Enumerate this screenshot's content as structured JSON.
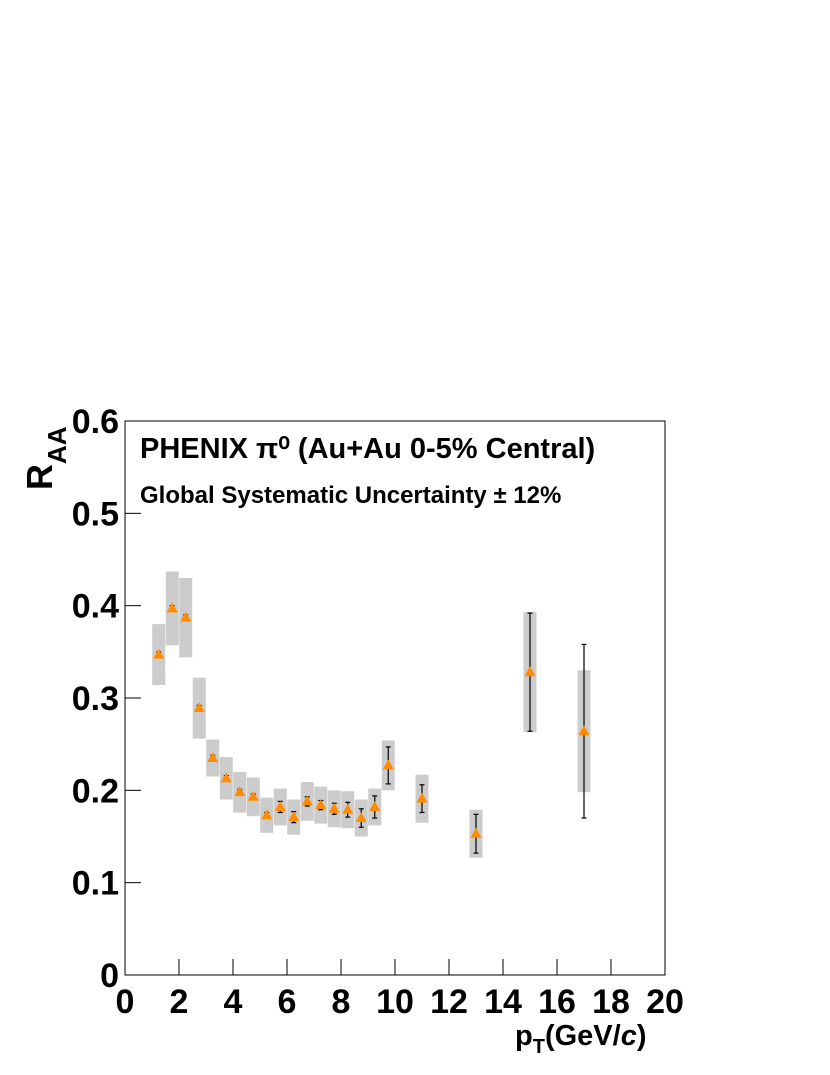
{
  "chart_data": {
    "type": "scatter",
    "annotations": [
      "PHENIX π⁰ (Au+Au 0-5% Central)",
      "Global Systematic Uncertainty ± 12%"
    ],
    "y_label": [
      "R",
      "AA"
    ],
    "x_label": [
      "p",
      "T",
      "(GeV/",
      "c",
      ")"
    ],
    "x": [
      1.25,
      1.75,
      2.25,
      2.75,
      3.25,
      3.75,
      4.25,
      4.75,
      5.25,
      5.75,
      6.25,
      6.75,
      7.25,
      7.75,
      8.25,
      8.75,
      9.25,
      9.75,
      11,
      13,
      15,
      17
    ],
    "series": [
      {
        "color": "#ff8c00",
        "box_color": "#cccccc",
        "values": [
          0.347,
          0.397,
          0.387,
          0.289,
          0.235,
          0.213,
          0.198,
          0.193,
          0.173,
          0.182,
          0.171,
          0.188,
          0.184,
          0.18,
          0.179,
          0.17,
          0.182,
          0.227,
          0.191,
          0.153,
          0.328,
          0.264
        ],
        "errors": [
          0.003,
          0.003,
          0.003,
          0.003,
          0.003,
          0.003,
          0.003,
          0.003,
          0.003,
          0.006,
          0.006,
          0.005,
          0.005,
          0.006,
          0.008,
          0.01,
          0.012,
          0.02,
          0.015,
          0.021,
          0.064,
          0.094
        ],
        "sys": [
          0.033,
          0.04,
          0.043,
          0.033,
          0.02,
          0.023,
          0.022,
          0.021,
          0.019,
          0.02,
          0.019,
          0.021,
          0.02,
          0.02,
          0.02,
          0.02,
          0.02,
          0.027,
          0.026,
          0.026,
          0.065,
          0.066
        ]
      }
    ],
    "xlim": [
      0,
      20
    ],
    "ylim": [
      0,
      0.6
    ],
    "xticks": [
      0,
      2,
      4,
      6,
      8,
      10,
      12,
      14,
      16,
      18,
      20
    ],
    "yticks": [
      0,
      0.1,
      0.2,
      0.3,
      0.4,
      0.5,
      0.6
    ]
  }
}
